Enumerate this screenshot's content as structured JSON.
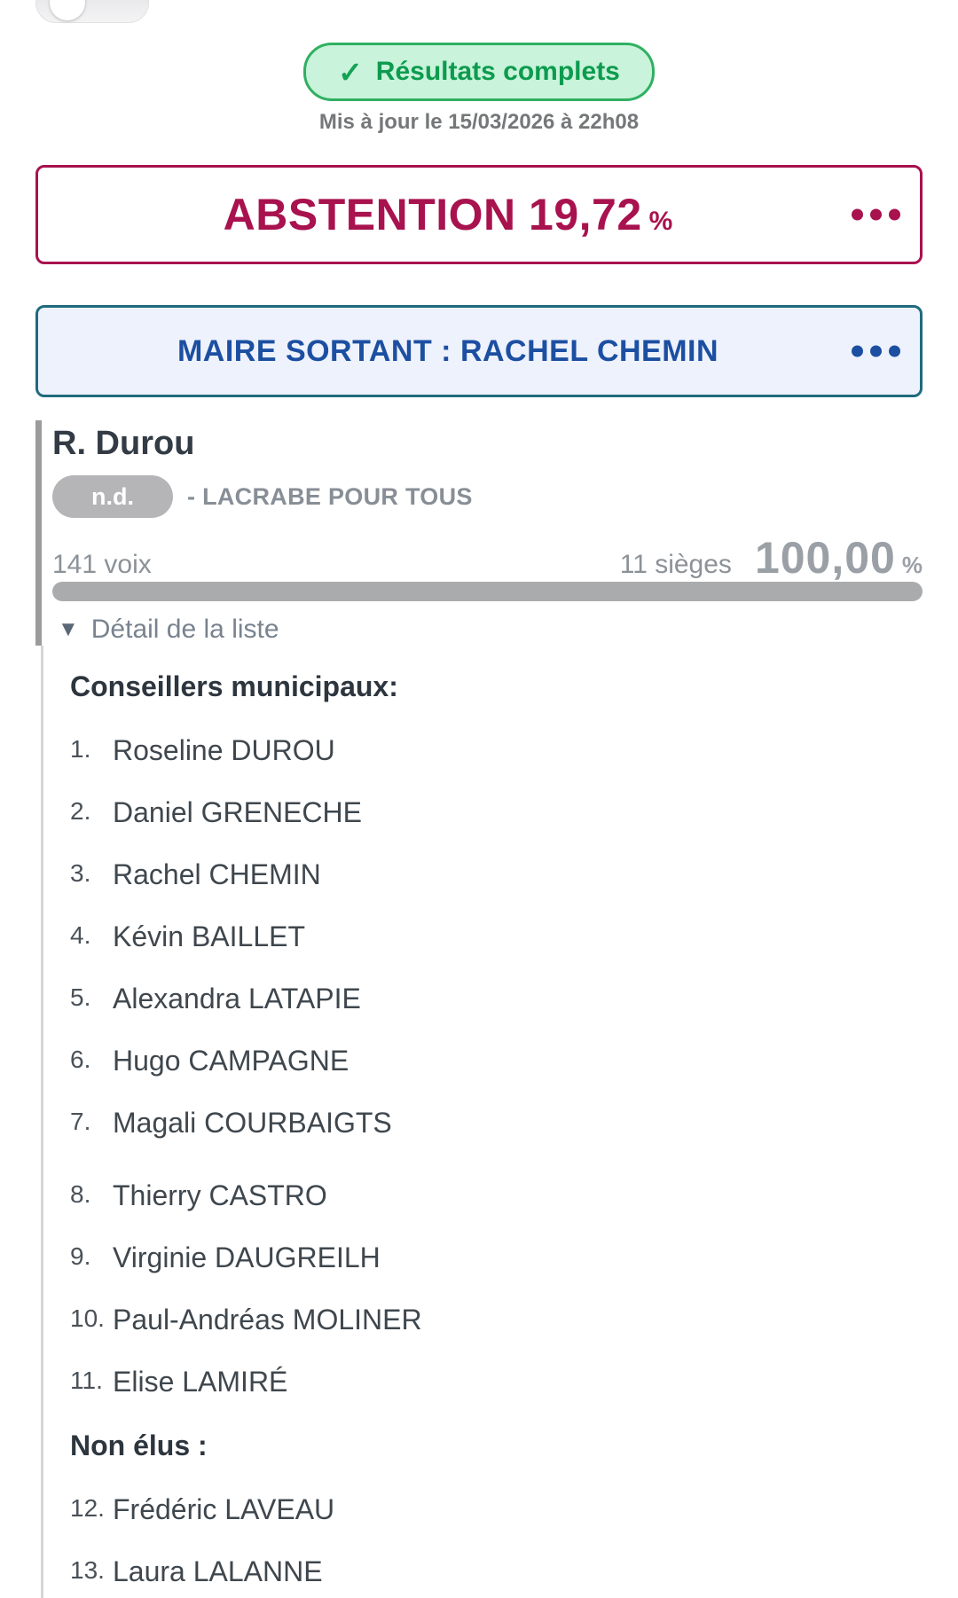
{
  "status": {
    "check_icon": "✓",
    "badge_label": "Résultats complets",
    "updated": "Mis à jour le 15/03/2026 à 22h08"
  },
  "abstention": {
    "title": "ABSTENTION",
    "value": "19,72",
    "unit": "%"
  },
  "outgoing_mayor": {
    "title": "MAIRE SORTANT : RACHEL CHEMIN"
  },
  "candidate": {
    "name": "R. Durou",
    "nuance": "n.d.",
    "list_label": "- LACRABE POUR TOUS",
    "votes": "141 voix",
    "seats": "11 sièges",
    "percent": "100,00",
    "percent_unit": "%",
    "bar_percent": 100,
    "detail_icon": "▼",
    "detail_label": "Détail de la liste"
  },
  "council": {
    "elected_heading": "Conseillers municipaux:",
    "elected": [
      {
        "rank": "1.",
        "name": "Roseline DUROU"
      },
      {
        "rank": "2.",
        "name": "Daniel GRENECHE"
      },
      {
        "rank": "3.",
        "name": "Rachel CHEMIN"
      },
      {
        "rank": "4.",
        "name": "Kévin BAILLET"
      },
      {
        "rank": "5.",
        "name": "Alexandra LATAPIE"
      },
      {
        "rank": "6.",
        "name": "Hugo CAMPAGNE"
      },
      {
        "rank": "7.",
        "name": "Magali COURBAIGTS"
      },
      {
        "rank": "8.",
        "name": "Thierry CASTRO"
      },
      {
        "rank": "9.",
        "name": "Virginie DAUGREILH"
      },
      {
        "rank": "10.",
        "name": "Paul-Andréas MOLINER"
      },
      {
        "rank": "11.",
        "name": "Elise LAMIRÉ"
      }
    ],
    "non_elected_heading": "Non élus :",
    "non_elected": [
      {
        "rank": "12.",
        "name": "Frédéric LAVEAU"
      },
      {
        "rank": "13.",
        "name": "Laura LALANNE"
      }
    ]
  },
  "colors": {
    "abstention_accent": "#a8124e",
    "mayor_border": "#1f6b7c",
    "mayor_text": "#1c4fa1",
    "badge_green_text": "#0d9b4e",
    "badge_green_border": "#2fb061",
    "badge_green_bg": "#c9f3da",
    "bar_gray": "#a9abad"
  }
}
